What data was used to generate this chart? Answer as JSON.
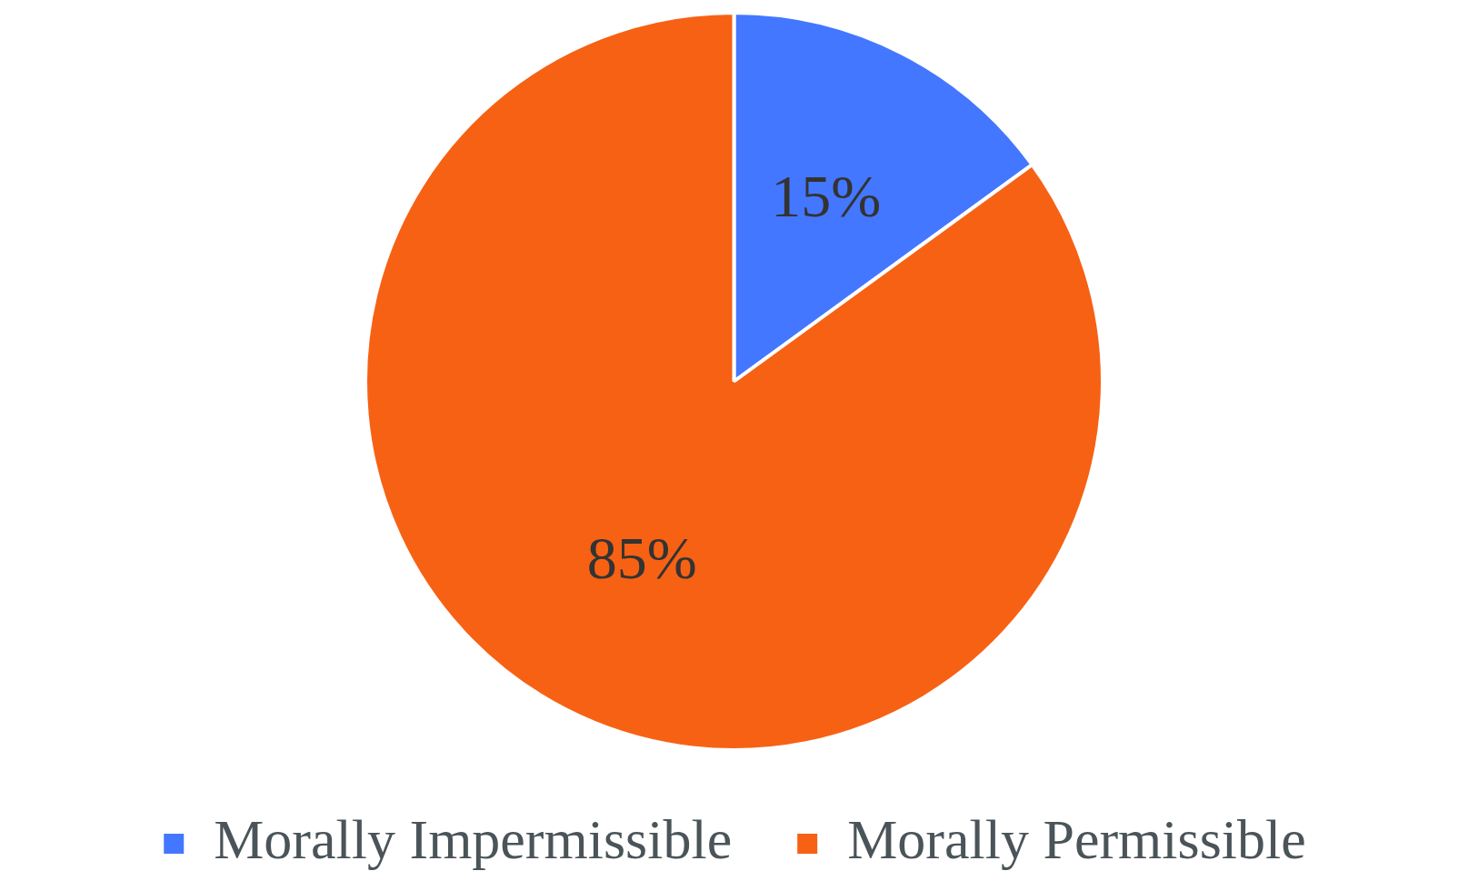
{
  "chart_data": {
    "type": "pie",
    "categories": [
      "Morally Impermissible",
      "Morally Permissible"
    ],
    "values": [
      15,
      85
    ],
    "colors": [
      "#4477ff",
      "#f76114"
    ],
    "value_labels": [
      "15%",
      "85%"
    ],
    "legend": "bottom"
  }
}
